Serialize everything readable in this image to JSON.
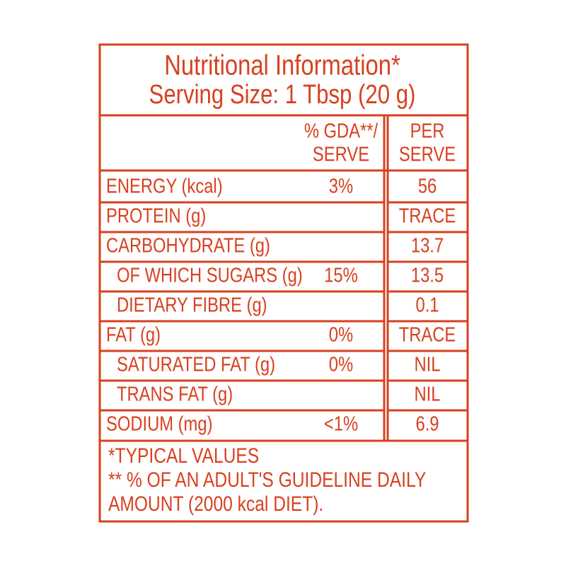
{
  "header": {
    "title": "Nutritional Information*",
    "serving_size": "Serving Size: 1 Tbsp (20 g)"
  },
  "table": {
    "columns": [
      [
        "% GDA**/",
        "SERVE"
      ],
      [
        "PER",
        "SERVE"
      ]
    ],
    "rows": [
      {
        "name": "ENERGY (kcal)",
        "gda": "3%",
        "per_serve": "56"
      },
      {
        "name": "PROTEIN (g)",
        "per_serve": "TRACE"
      },
      {
        "name": "CARBOHYDRATE (g)",
        "per_serve": "13.7"
      },
      {
        "name": "OF WHICH SUGARS (g)",
        "gda": "15%",
        "per_serve": "13.5"
      },
      {
        "name": "DIETARY FIBRE (g)",
        "per_serve": "0.1"
      },
      {
        "name": "FAT (g)",
        "gda": "0%",
        "per_serve": "TRACE"
      },
      {
        "name": "SATURATED FAT (g)",
        "gda": "0%",
        "per_serve": "NIL"
      },
      {
        "name": "TRANS FAT (g)",
        "per_serve": "NIL"
      },
      {
        "name": "SODIUM (mg)",
        "gda": "<1%",
        "per_serve": "6.9"
      }
    ]
  },
  "footer": [
    "*TYPICAL VALUES",
    "** % OF AN ADULT'S GUIDELINE DAILY",
    "AMOUNT (2000 kcal DIET)."
  ]
}
